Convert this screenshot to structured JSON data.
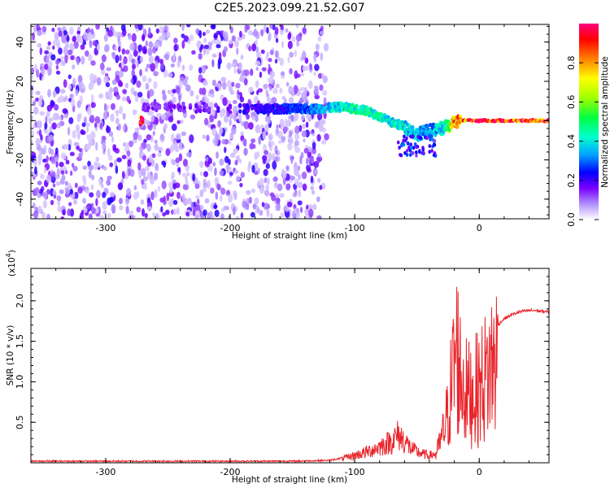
{
  "title": "C2E5.2023.099.21.52.G07",
  "colors": {
    "snr_line": "#e8242a",
    "scale_stops": [
      "#ffffff",
      "#b090ff",
      "#7a00ff",
      "#0000ff",
      "#00a0ff",
      "#00ffd0",
      "#00ff40",
      "#a0ff00",
      "#ffff00",
      "#ff8000",
      "#ff0000",
      "#ff0080"
    ]
  },
  "chart_data": [
    {
      "type": "heatmap",
      "xlabel": "Height of straight line (km)",
      "ylabel": "Frequency (Hz)",
      "xlim": [
        -360,
        56
      ],
      "ylim": [
        -50,
        49
      ],
      "x_ticks": [
        -300,
        -200,
        -100,
        0
      ],
      "x_tick_labels": [
        "-300",
        "-200",
        "-100",
        "0"
      ],
      "y_ticks": [
        -40,
        -20,
        0,
        20,
        40
      ],
      "y_tick_labels": [
        "-40",
        "-20",
        "0",
        "20",
        "40"
      ],
      "colorbar": {
        "label": "Normalized spectral amplitude",
        "range": [
          0,
          1
        ],
        "ticks": [
          0.0,
          0.2,
          0.4,
          0.6,
          0.8
        ],
        "tick_labels": [
          "0.0",
          "0.2",
          "0.4",
          "0.6",
          "0.8"
        ]
      },
      "ridge": {
        "description_points_x": [
          -270,
          -250,
          -200,
          -160,
          -130,
          -110,
          -90,
          -80,
          -70,
          -60,
          -55,
          -50,
          -45,
          -40,
          -35,
          -30,
          -25,
          -20,
          -15,
          -10,
          0,
          20,
          40,
          55
        ],
        "description_points_y": [
          7,
          7,
          6,
          6,
          6,
          7,
          5,
          2,
          -1,
          -3,
          -5,
          -7,
          -6,
          -5,
          -5,
          -4,
          -3,
          -1,
          0,
          0,
          0,
          0,
          0,
          0
        ],
        "amplitude": [
          0.15,
          0.15,
          0.2,
          0.25,
          0.35,
          0.45,
          0.5,
          0.5,
          0.45,
          0.45,
          0.4,
          0.4,
          0.35,
          0.35,
          0.4,
          0.45,
          0.6,
          0.85,
          0.9,
          0.95,
          1.0,
          1.0,
          1.0,
          1.0
        ]
      }
    },
    {
      "type": "line",
      "xlabel": "Height of straight line (km)",
      "ylabel": "SNR (10 * v/v)",
      "y_multiplier": "(x10",
      "y_multiplier_exp": "4",
      "y_multiplier_close": ")",
      "xlim": [
        -360,
        56
      ],
      "ylim": [
        0,
        2.4
      ],
      "x_ticks": [
        -300,
        -200,
        -100,
        0
      ],
      "x_tick_labels": [
        "-300",
        "-200",
        "-100",
        "0"
      ],
      "y_ticks": [
        0.5,
        1.0,
        1.5,
        2.0
      ],
      "y_tick_labels": [
        "0.5",
        "1.0",
        "1.5",
        "2.0"
      ],
      "series": [
        {
          "x": [
            -360,
            -300,
            -250,
            -200,
            -150,
            -120,
            -110,
            -100,
            -90,
            -80,
            -70,
            -65,
            -60,
            -55,
            -50,
            -45,
            -40,
            -35,
            -30,
            -25,
            -22,
            -20,
            -18,
            -15,
            -12,
            -10,
            -5,
            0,
            5,
            10,
            15,
            20,
            25,
            30,
            35,
            40,
            45,
            50,
            56
          ],
          "y": [
            0.02,
            0.02,
            0.02,
            0.02,
            0.02,
            0.03,
            0.06,
            0.1,
            0.15,
            0.22,
            0.3,
            0.38,
            0.3,
            0.2,
            0.15,
            0.12,
            0.1,
            0.12,
            0.4,
            0.8,
            1.3,
            1.6,
            1.8,
            1.4,
            1.2,
            1.1,
            1.1,
            1.2,
            1.35,
            1.55,
            1.7,
            1.78,
            1.82,
            1.85,
            1.87,
            1.88,
            1.88,
            1.87,
            1.86
          ]
        }
      ]
    }
  ]
}
